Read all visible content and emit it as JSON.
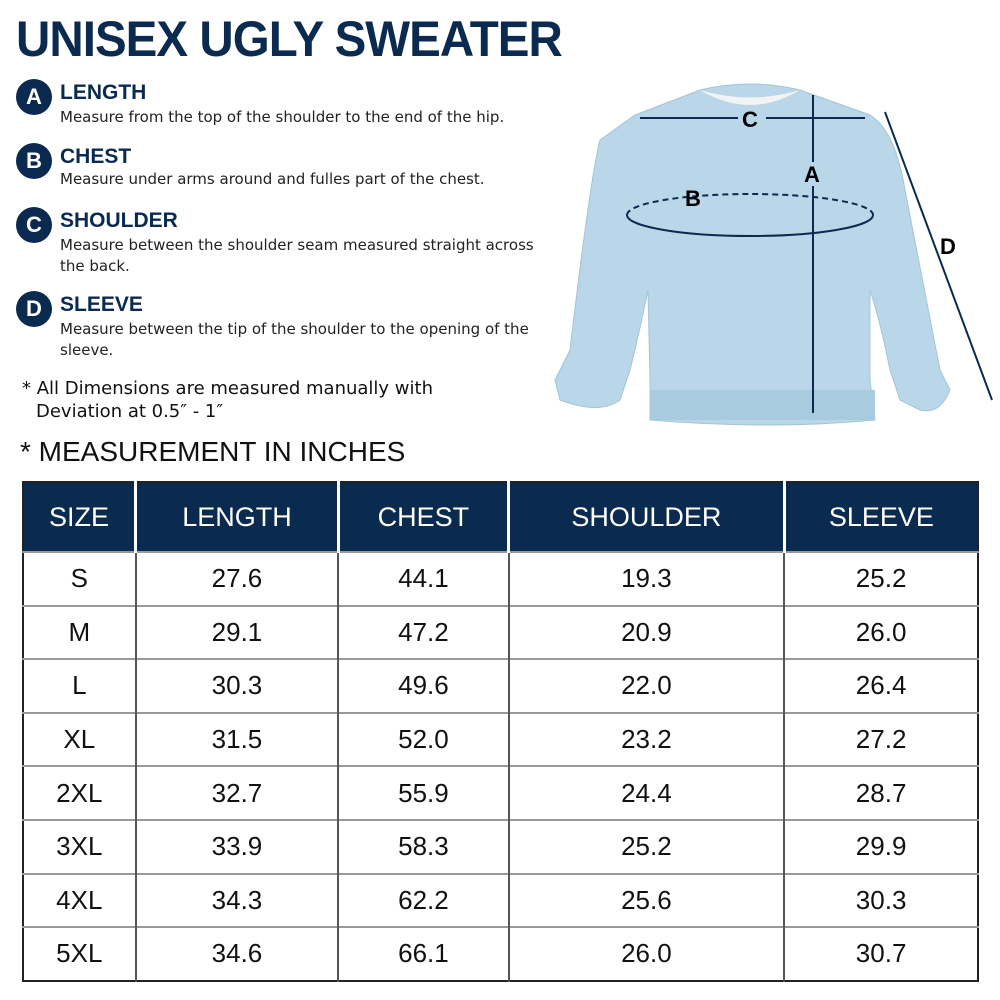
{
  "title": "UNISEX UGLY SWEATER",
  "measures": [
    {
      "letter": "A",
      "name": "LENGTH",
      "desc": "Measure from the top of the shoulder to the end of the hip."
    },
    {
      "letter": "B",
      "name": "CHEST",
      "desc": "Measure under arms around and fulles part of the chest."
    },
    {
      "letter": "C",
      "name": "SHOULDER",
      "desc": "Measure between the shoulder seam measured straight across the back."
    },
    {
      "letter": "D",
      "name": "SLEEVE",
      "desc": "Measure between the tip of the shoulder to the opening of the sleeve."
    }
  ],
  "note_line1": "* All Dimensions are measured manually with",
  "note_line2": "Deviation at 0.5″ - 1″",
  "unit_note": "* MEASUREMENT IN INCHES",
  "diagram_labels": {
    "a": "A",
    "b": "B",
    "c": "C",
    "d": "D"
  },
  "colors": {
    "navy": "#0b2a4f",
    "sweater": "#b9d7e8"
  },
  "table": {
    "headers": [
      "SIZE",
      "LENGTH",
      "CHEST",
      "SHOULDER",
      "SLEEVE"
    ],
    "rows": [
      [
        "S",
        "27.6",
        "44.1",
        "19.3",
        "25.2"
      ],
      [
        "M",
        "29.1",
        "47.2",
        "20.9",
        "26.0"
      ],
      [
        "L",
        "30.3",
        "49.6",
        "22.0",
        "26.4"
      ],
      [
        "XL",
        "31.5",
        "52.0",
        "23.2",
        "27.2"
      ],
      [
        "2XL",
        "32.7",
        "55.9",
        "24.4",
        "28.7"
      ],
      [
        "3XL",
        "33.9",
        "58.3",
        "25.2",
        "29.9"
      ],
      [
        "4XL",
        "34.3",
        "62.2",
        "25.6",
        "30.3"
      ],
      [
        "5XL",
        "34.6",
        "66.1",
        "26.0",
        "30.7"
      ]
    ]
  }
}
